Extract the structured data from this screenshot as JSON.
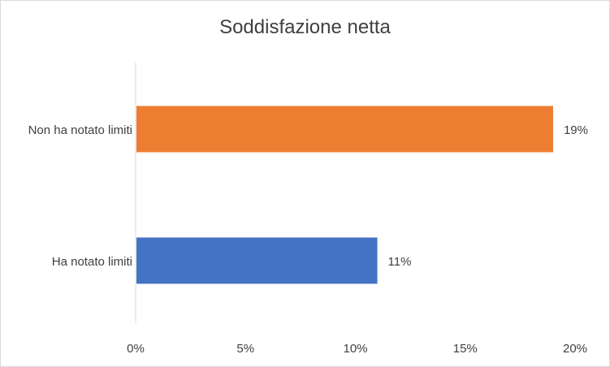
{
  "chart_data": {
    "type": "bar",
    "orientation": "horizontal",
    "title": "Soddisfazione netta",
    "categories": [
      "Non ha notato limiti",
      "Ha notato limiti"
    ],
    "values": [
      19,
      11
    ],
    "data_labels": [
      "19%",
      "11%"
    ],
    "colors": [
      "#ed7d31",
      "#4472c4"
    ],
    "xlim": [
      0,
      20
    ],
    "x_ticks": [
      0,
      5,
      10,
      15,
      20
    ],
    "x_tick_labels": [
      "0%",
      "5%",
      "10%",
      "15%",
      "20%"
    ],
    "xlabel": "",
    "ylabel": "",
    "grid": false,
    "legend": "none"
  }
}
